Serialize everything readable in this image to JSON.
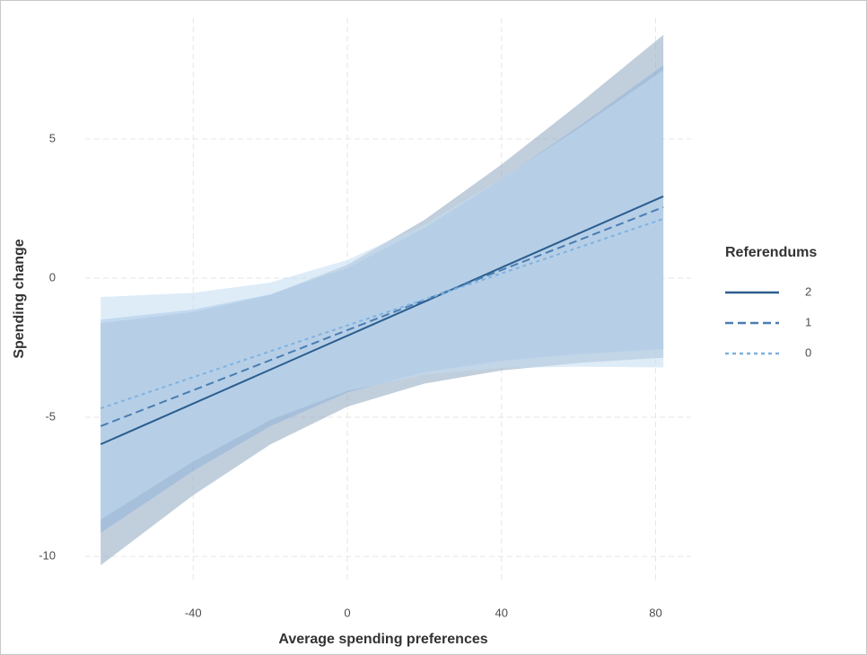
{
  "chart_data": {
    "type": "line",
    "xlabel": "Average spending preferences",
    "ylabel": "Spending change",
    "legend_title": "Referendums",
    "x": [
      -64,
      -40,
      -20,
      0,
      20,
      40,
      60,
      82
    ],
    "series": [
      {
        "name": "2",
        "color": "#2b5d8e",
        "band_color": "#8ea6bf",
        "dash": "solid",
        "values": [
          -5.97,
          -4.51,
          -3.29,
          -2.07,
          -0.85,
          0.38,
          1.6,
          2.94
        ],
        "lower": [
          -10.32,
          -7.8,
          -5.98,
          -4.62,
          -3.79,
          -3.32,
          -3.05,
          -2.86
        ],
        "upper": [
          -1.62,
          -1.22,
          -0.6,
          0.48,
          2.09,
          4.08,
          6.25,
          8.74
        ]
      },
      {
        "name": "1",
        "color": "#4a7db2",
        "band_color": "#8fb3d8",
        "dash": "dashed",
        "values": [
          -5.32,
          -4.03,
          -2.95,
          -1.87,
          -0.79,
          0.29,
          1.36,
          2.55
        ],
        "lower": [
          -9.15,
          -6.93,
          -5.32,
          -4.11,
          -3.38,
          -2.97,
          -2.73,
          -2.55
        ],
        "upper": [
          -1.49,
          -1.13,
          -0.58,
          0.37,
          1.8,
          3.55,
          5.45,
          7.65
        ]
      },
      {
        "name": "0",
        "color": "#7fb2e0",
        "band_color": "#c2dcf3",
        "dash": "dotted",
        "values": [
          -4.68,
          -3.56,
          -2.63,
          -1.7,
          -0.77,
          0.17,
          1.1,
          2.13
        ],
        "lower": [
          -8.68,
          -6.59,
          -5.1,
          -4.05,
          -3.47,
          -3.23,
          -3.18,
          -3.21
        ],
        "upper": [
          -0.68,
          -0.53,
          -0.16,
          0.65,
          1.93,
          3.57,
          5.38,
          7.47
        ]
      }
    ],
    "xlim": [
      -68,
      89.2
    ],
    "ylim": [
      -10.9,
      9.35
    ],
    "xticks": [
      -40,
      0,
      40,
      80
    ],
    "yticks": [
      -10,
      -5,
      0,
      5
    ],
    "grid": true
  }
}
